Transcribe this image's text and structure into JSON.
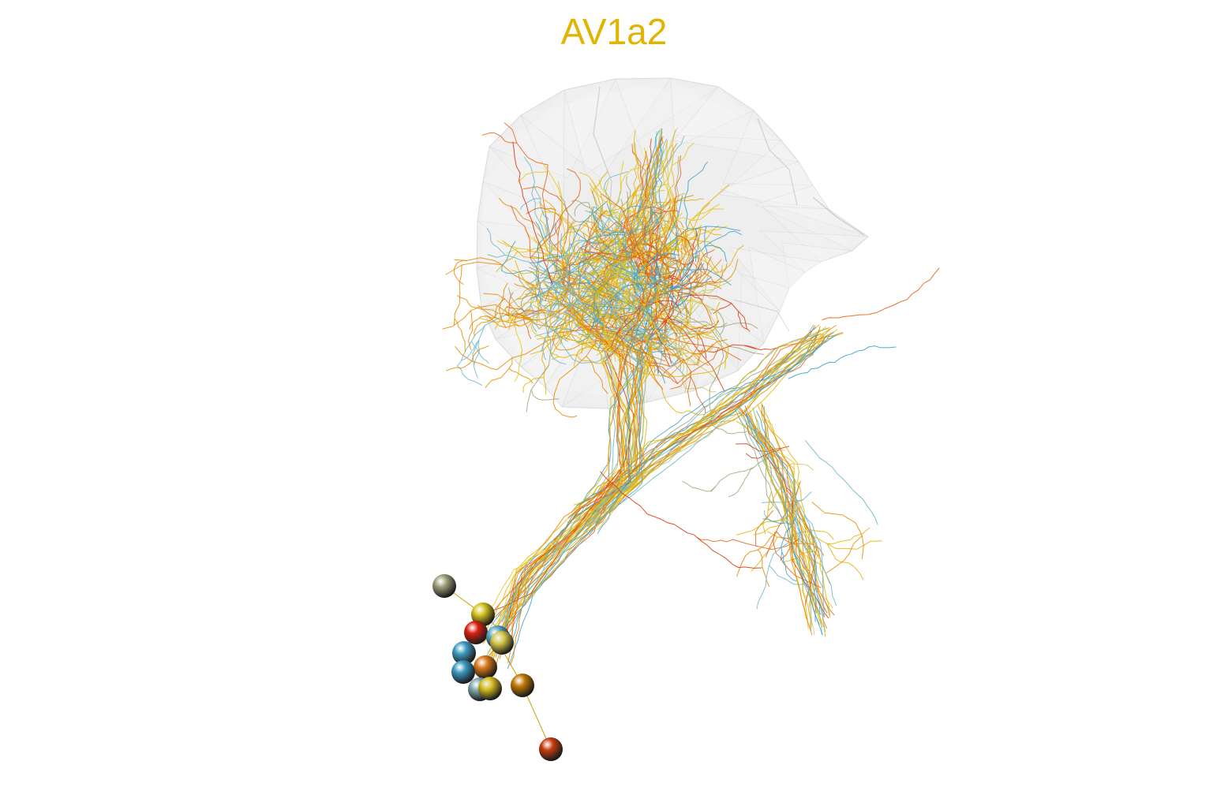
{
  "title": "AV1a2",
  "colors": {
    "title": "#E0B400",
    "neuropil_fill": "#d9d9d9",
    "neuropil_edge": "#bfbfbf",
    "palette": [
      "#3EA1C8",
      "#6EB7C9",
      "#E6C81A",
      "#E4B300",
      "#E68A00",
      "#E8641A",
      "#D93A12",
      "#C7C76A",
      "#A0A77A"
    ]
  },
  "soma_colors": [
    "#9EA07A",
    "#D6C41E",
    "#D92010",
    "#5AA8C4",
    "#D8C84A",
    "#3E9DC2",
    "#D87A1A",
    "#3A9AC0",
    "#7FA8AC",
    "#D6BE1E",
    "#C27A06",
    "#C63C0E"
  ]
}
